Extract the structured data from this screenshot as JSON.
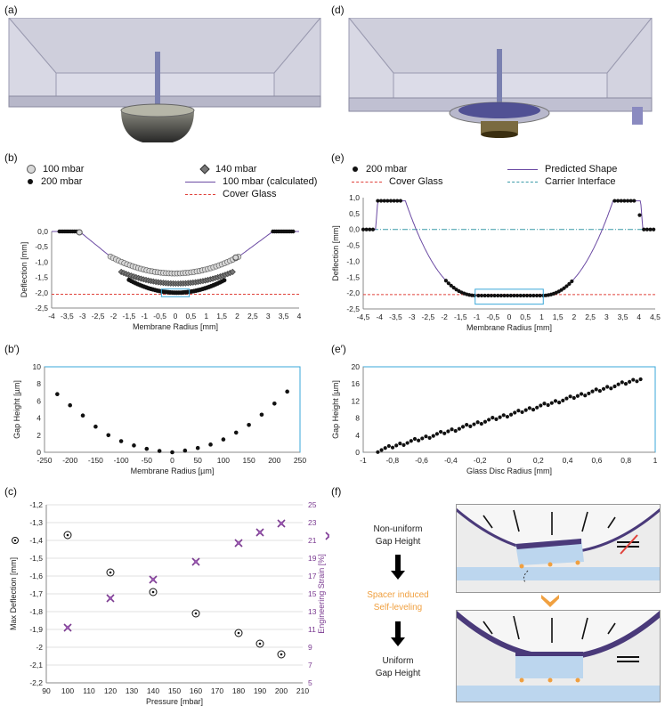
{
  "labels": {
    "a": "(a)",
    "b": "(b)",
    "bp": "(b′)",
    "c": "(c)",
    "d": "(d)",
    "e": "(e)",
    "ep": "(e′)",
    "f": "(f)"
  },
  "chart_data": [
    {
      "id": "b",
      "type": "scatter",
      "xlabel": "Membrane Radius  [mm]",
      "ylabel": "Deflection  [mm]",
      "xlim": [
        -4,
        4
      ],
      "ylim": [
        -2.5,
        0
      ],
      "xticks": [
        "-4",
        "-3,5",
        "-3",
        "-2,5",
        "-2",
        "-1,5",
        "-1",
        "-0,5",
        "0",
        "0,5",
        "1",
        "1,5",
        "2",
        "2,5",
        "3",
        "3,5",
        "4"
      ],
      "yticks": [
        "0,0",
        "-0,5",
        "-1,0",
        "-1,5",
        "-2,0",
        "-2,5"
      ],
      "legend": [
        "100 mbar",
        "140 mbar",
        "200 mbar",
        "100 mbar (calculated)",
        "Cover Glass"
      ],
      "cover_glass_y": -2.05,
      "series": [
        {
          "name": "100 mbar",
          "flat_left": [
            -3.7,
            -3.1
          ],
          "flat_right": [
            3.15,
            3.8
          ],
          "arc_x": [
            -2.1,
            2.05
          ],
          "arc_edge_y": -0.82,
          "arc_min_y": -1.37
        },
        {
          "name": "140 mbar",
          "arc_x": [
            -1.75,
            1.85
          ],
          "arc_edge_y": -1.32,
          "arc_min_y": -1.7
        },
        {
          "name": "200 mbar",
          "arc_x": [
            -1.5,
            1.6
          ],
          "arc_edge_y": -1.58,
          "arc_min_y": -2.0
        }
      ]
    },
    {
      "id": "bp",
      "type": "scatter",
      "xlabel": "Membrane Radius [µm]",
      "ylabel": "Gap Height [µm]",
      "xlim": [
        -250,
        250
      ],
      "ylim": [
        0,
        10
      ],
      "xticks": [
        "-250",
        "-200",
        "-150",
        "-100",
        "-50",
        "0",
        "50",
        "100",
        "150",
        "200",
        "250"
      ],
      "yticks": [
        "0",
        "2",
        "4",
        "6",
        "8",
        "10"
      ],
      "x": [
        -225,
        -200,
        -175,
        -150,
        -125,
        -100,
        -75,
        -50,
        -25,
        0,
        25,
        50,
        75,
        100,
        125,
        150,
        175,
        200,
        225
      ],
      "y": [
        6.8,
        5.5,
        4.3,
        3.0,
        2.0,
        1.3,
        0.8,
        0.4,
        0.15,
        0.0,
        0.2,
        0.5,
        0.9,
        1.5,
        2.3,
        3.2,
        4.4,
        5.7,
        7.1
      ]
    },
    {
      "id": "c",
      "type": "scatter",
      "xlabel": "Pressure [mbar]",
      "ylabel": "Max Deflection [mm]",
      "ylabel_right": "Engineering Strain [%]",
      "xlim": [
        90,
        210
      ],
      "ylim": [
        -2.2,
        -1.2
      ],
      "ylim_right": [
        5,
        25
      ],
      "xticks": [
        "90",
        "100",
        "110",
        "120",
        "130",
        "140",
        "150",
        "160",
        "170",
        "180",
        "190",
        "200",
        "210"
      ],
      "yticks": [
        "-1,2",
        "-1,3",
        "-1,4",
        "-1,5",
        "-1,6",
        "-1,7",
        "-1,8",
        "-1,9",
        "-2",
        "-2,1",
        "-2,2"
      ],
      "yticks_right": [
        "25",
        "23",
        "21",
        "19",
        "17",
        "15",
        "13",
        "11",
        "9",
        "7",
        "5"
      ],
      "series": [
        {
          "name": "Max Deflection",
          "x": [
            100,
            120,
            140,
            160,
            180,
            190,
            200
          ],
          "y": [
            -1.37,
            -1.58,
            -1.69,
            -1.81,
            -1.92,
            -1.98,
            -2.04
          ]
        },
        {
          "name": "Engineering Strain",
          "x": [
            100,
            120,
            140,
            160,
            180,
            190,
            200
          ],
          "y": [
            11.2,
            14.5,
            16.6,
            18.6,
            20.7,
            21.9,
            22.9
          ]
        }
      ]
    },
    {
      "id": "e",
      "type": "scatter",
      "xlabel": "Membrane Radius  [mm]",
      "ylabel": "Deflection  [mm]",
      "xlim": [
        -4.5,
        4.5
      ],
      "ylim": [
        -2.5,
        1.0
      ],
      "xticks": [
        "-4,5",
        "-4",
        "-3,5",
        "-3",
        "-2,5",
        "-2",
        "-1,5",
        "-1",
        "-0,5",
        "0",
        "0,5",
        "1",
        "1,5",
        "2",
        "2,5",
        "3",
        "3,5",
        "4",
        "4,5"
      ],
      "yticks": [
        "1,0",
        "0,5",
        "0,0",
        "-0,5",
        "-1,0",
        "-1,5",
        "-2,0",
        "-2,5"
      ],
      "legend": [
        "200 mbar",
        "Predicted Shape",
        "Cover Glass",
        "Carrier Interface"
      ],
      "cover_glass_y": -2.05,
      "carrier_interface_y": 0.0
    },
    {
      "id": "ep",
      "type": "scatter",
      "xlabel": "Glass Disc Radius [mm]",
      "ylabel": "Gap Height [µm]",
      "xlim": [
        -1,
        1
      ],
      "ylim": [
        0,
        20
      ],
      "xticks": [
        "-1",
        "-0,8",
        "-0,6",
        "-0,4",
        "-0,2",
        "0",
        "0,2",
        "0,4",
        "0,6",
        "0,8",
        "1"
      ],
      "yticks": [
        "0",
        "4",
        "8",
        "12",
        "16",
        "20"
      ],
      "x_range": [
        -0.9,
        0.9
      ],
      "y_range": [
        0.4,
        17.2
      ]
    }
  ],
  "panel_f": {
    "text1": "Non-uniform\nGap Height",
    "text2": "Spacer induced\nSelf-leveling",
    "text3": "Uniform\nGap Height",
    "accent": "#f0a040"
  }
}
